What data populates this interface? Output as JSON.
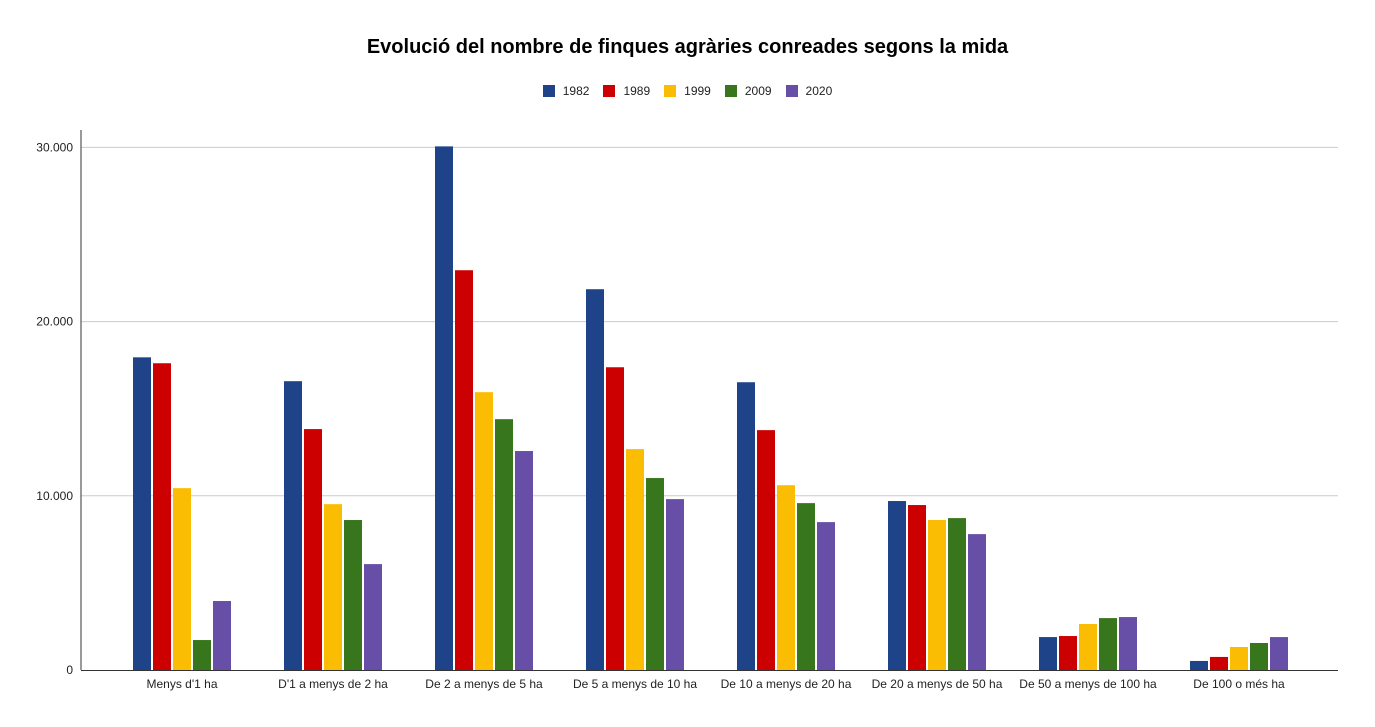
{
  "chart_data": {
    "type": "bar",
    "title": "Evolució del nombre de finques agràries conreades segons la mida",
    "xlabel": "",
    "ylabel": "",
    "ylim": [
      0,
      31000
    ],
    "yticks": [
      0,
      10000,
      20000,
      30000
    ],
    "ytick_labels": [
      "0",
      "10.000",
      "20.000",
      "30.000"
    ],
    "grid": true,
    "legend_position": "top",
    "categories": [
      "Menys d'1 ha",
      "D'1 a menys de 2 ha",
      "De 2 a menys de 5 ha",
      "De 5 a menys de 10 ha",
      "De 10 a menys de 20 ha",
      "De 20 a menys de 50 ha",
      "De 50 a menys de 100 ha",
      "De 100 o més ha"
    ],
    "series": [
      {
        "name": "1982",
        "color": "#1f4388",
        "values": [
          17950,
          16580,
          30060,
          21860,
          16520,
          9700,
          1890,
          520
        ]
      },
      {
        "name": "1989",
        "color": "#cc0000",
        "values": [
          17610,
          13830,
          22950,
          17380,
          13770,
          9470,
          1950,
          750
        ]
      },
      {
        "name": "1999",
        "color": "#fbbc04",
        "values": [
          10440,
          9520,
          15950,
          12680,
          10610,
          8610,
          2640,
          1320
        ]
      },
      {
        "name": "2009",
        "color": "#38761d",
        "values": [
          1720,
          8610,
          14400,
          11020,
          9580,
          8720,
          2980,
          1550
        ]
      },
      {
        "name": "2020",
        "color": "#674ea7",
        "values": [
          3960,
          6080,
          12570,
          9810,
          8490,
          7800,
          3040,
          1890
        ]
      }
    ]
  }
}
